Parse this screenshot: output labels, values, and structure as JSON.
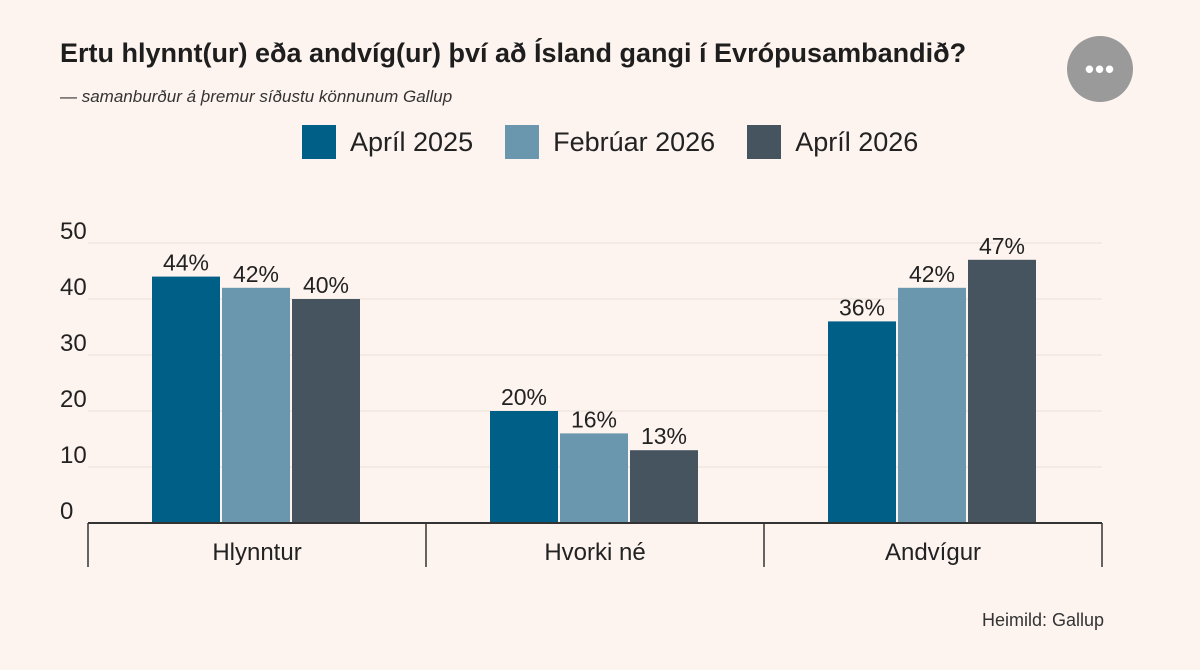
{
  "header": {
    "title": "Ertu hlynnt(ur) eða andvíg(ur) því að Ísland gangi í Evrópusambandið?",
    "subtitle": "— samanburður á þremur síðustu könnunum Gallup",
    "more_icon": "more-horizontal-icon",
    "more_label": "•••"
  },
  "source": "Heimild: Gallup",
  "colors": {
    "background": "#fdf4ef",
    "grid": "#e9dfda",
    "axis": "#333333",
    "series": [
      "#005f87",
      "#6a97ae",
      "#45545f"
    ]
  },
  "chart_data": {
    "type": "bar",
    "title": "Ertu hlynnt(ur) eða andvíg(ur) því að Ísland gangi í Evrópusambandið?",
    "xlabel": "",
    "ylabel": "",
    "ylim": [
      0,
      50
    ],
    "yticks": [
      0,
      10,
      20,
      30,
      40,
      50
    ],
    "grid": true,
    "legend_position": "top",
    "categories": [
      "Hlynntur",
      "Hvorki né",
      "Andvígur"
    ],
    "series": [
      {
        "name": "Apríl 2025",
        "values": [
          44,
          20,
          36
        ],
        "labels": [
          "44%",
          "20%",
          "36%"
        ]
      },
      {
        "name": "Febrúar 2026",
        "values": [
          42,
          16,
          42
        ],
        "labels": [
          "42%",
          "16%",
          "42%"
        ]
      },
      {
        "name": "Apríl 2026",
        "values": [
          40,
          13,
          47
        ],
        "labels": [
          "40%",
          "13%",
          "47%"
        ]
      }
    ]
  }
}
